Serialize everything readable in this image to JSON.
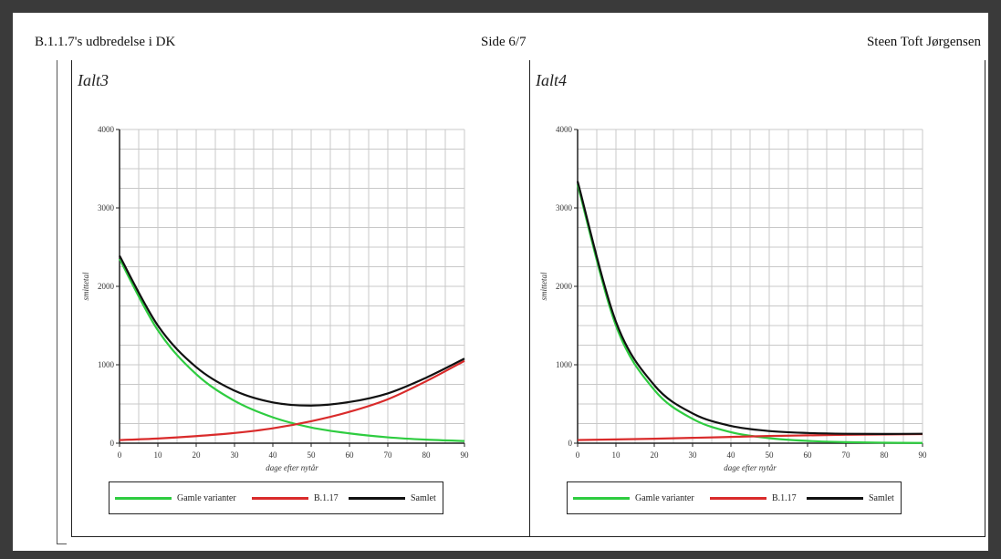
{
  "header": {
    "left": "B.1.1.7's udbredelse i DK",
    "center": "Side 6/7",
    "right": "Steen Toft Jørgensen"
  },
  "colors": {
    "old": "#2ecc40",
    "b117": "#d92b2b",
    "total": "#111111",
    "grid": "#c8c8c8"
  },
  "chart_data": [
    {
      "type": "line",
      "title": "Ialt3",
      "xlabel": "dage efter nytår",
      "ylabel": "smittetal",
      "xlim": [
        0,
        90
      ],
      "ylim": [
        0,
        4000
      ],
      "xticks": [
        0,
        10,
        20,
        30,
        40,
        50,
        60,
        70,
        80,
        90
      ],
      "yticks": [
        0,
        1000,
        2000,
        3000,
        4000
      ],
      "grid": true,
      "legend_position": "bottom",
      "x": [
        0,
        10,
        20,
        30,
        40,
        50,
        60,
        70,
        80,
        90
      ],
      "series": [
        {
          "name": "Gamle varianter",
          "values": [
            2350,
            1440,
            880,
            540,
            330,
            200,
            125,
            75,
            45,
            28
          ]
        },
        {
          "name": "B.1.17",
          "values": [
            40,
            60,
            90,
            130,
            190,
            280,
            400,
            560,
            790,
            1050
          ]
        },
        {
          "name": "Samlet",
          "values": [
            2390,
            1500,
            970,
            670,
            520,
            480,
            525,
            635,
            835,
            1078
          ]
        }
      ]
    },
    {
      "type": "line",
      "title": "Ialt4",
      "xlabel": "dage efter nytår",
      "ylabel": "smittetal",
      "xlim": [
        0,
        90
      ],
      "ylim": [
        0,
        4000
      ],
      "xticks": [
        0,
        10,
        20,
        30,
        40,
        50,
        60,
        70,
        80,
        90
      ],
      "yticks": [
        0,
        1000,
        2000,
        3000,
        4000
      ],
      "grid": true,
      "legend_position": "bottom",
      "x": [
        0,
        10,
        20,
        30,
        40,
        50,
        60,
        70,
        80,
        90
      ],
      "series": [
        {
          "name": "Gamle varianter",
          "values": [
            3300,
            1500,
            680,
            310,
            140,
            64,
            29,
            13,
            6,
            3
          ]
        },
        {
          "name": "B.1.17",
          "values": [
            40,
            48,
            57,
            68,
            80,
            92,
            100,
            107,
            112,
            116
          ]
        },
        {
          "name": "Samlet",
          "values": [
            3340,
            1550,
            740,
            380,
            220,
            155,
            130,
            120,
            118,
            120
          ]
        }
      ]
    }
  ]
}
